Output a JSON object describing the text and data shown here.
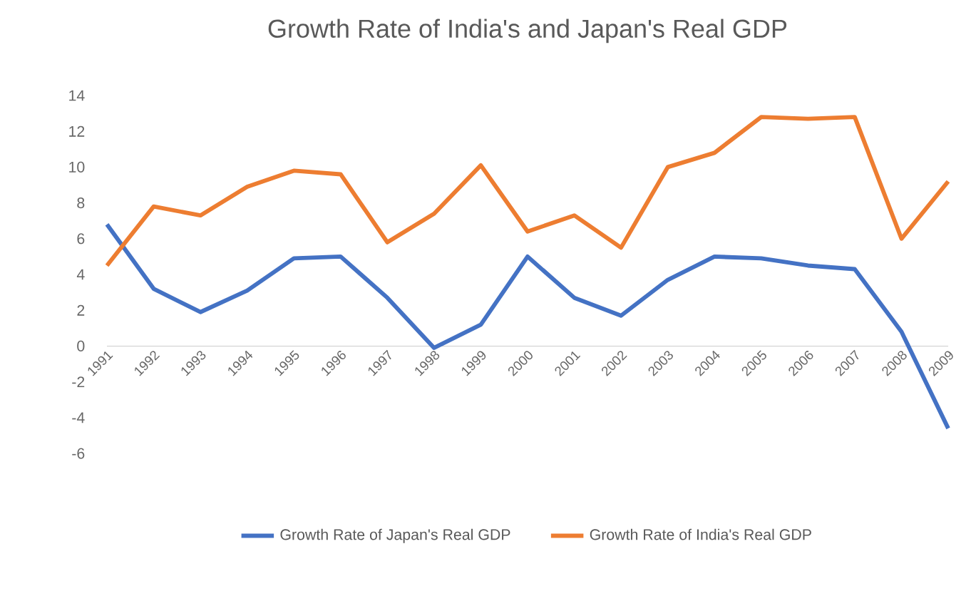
{
  "chart_data": {
    "type": "line",
    "title": "Growth Rate of India's and Japan's Real GDP",
    "categories": [
      "1991",
      "1992",
      "1993",
      "1994",
      "1995",
      "1996",
      "1997",
      "1998",
      "1999",
      "2000",
      "2001",
      "2002",
      "2003",
      "2004",
      "2005",
      "2006",
      "2007",
      "2008",
      "2009"
    ],
    "series": [
      {
        "name": "Growth Rate of Japan's Real GDP",
        "color": "#4472c4",
        "values": [
          6.8,
          3.2,
          1.9,
          3.1,
          4.9,
          5.0,
          2.7,
          -0.1,
          1.2,
          5.0,
          2.7,
          1.7,
          3.7,
          5.0,
          4.9,
          4.5,
          4.3,
          0.8,
          -4.6
        ]
      },
      {
        "name": "Growth Rate of India's Real GDP",
        "color": "#ed7d31",
        "values": [
          4.5,
          7.8,
          7.3,
          8.9,
          9.8,
          9.6,
          5.8,
          7.4,
          10.1,
          6.4,
          7.3,
          5.5,
          10.0,
          10.8,
          12.8,
          12.7,
          12.8,
          6.0,
          9.2
        ]
      }
    ],
    "ylim": [
      -6,
      14
    ],
    "yticks": [
      -6,
      -4,
      -2,
      0,
      2,
      4,
      6,
      8,
      10,
      12,
      14
    ],
    "legend": "bottom"
  }
}
